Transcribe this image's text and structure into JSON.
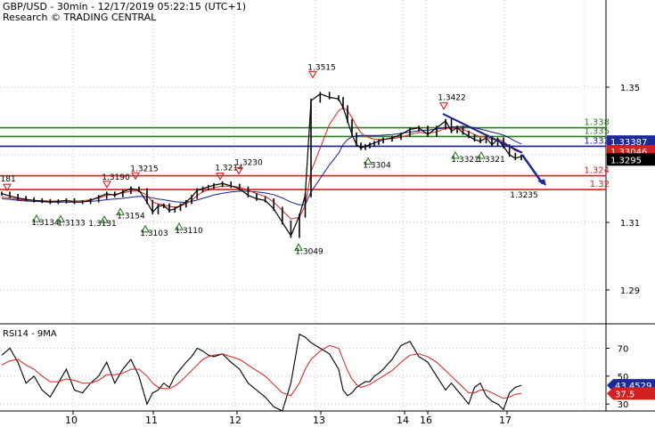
{
  "header": {
    "line1": "GBP/USD - 30min - 12/17/2019 05:22:15 (UTC+1)",
    "line2": "Research © TRADING CENTRAL"
  },
  "chart_data": [
    {
      "type": "line",
      "name": "price",
      "ylim": [
        1.2805,
        1.3758
      ],
      "y_ticks": [
        "1.35",
        "1.33",
        "1.31",
        "1.29"
      ],
      "y_tick_values": [
        1.35,
        1.33,
        1.31,
        1.29
      ],
      "x_tick_labels": [
        "10",
        "11",
        "12",
        "13",
        "14",
        "16",
        "17"
      ],
      "price_path": [
        1.3185,
        1.3178,
        1.3172,
        1.3168,
        1.3165,
        1.3163,
        1.316,
        1.3162,
        1.3165,
        1.316,
        1.316,
        1.3165,
        1.3175,
        1.3185,
        1.318,
        1.319,
        1.32,
        1.3195,
        1.316,
        1.313,
        1.3148,
        1.315,
        1.3135,
        1.314,
        1.315,
        1.316,
        1.3175,
        1.3195,
        1.32,
        1.3205,
        1.321,
        1.3215,
        1.3208,
        1.32,
        1.318,
        1.317,
        1.3165,
        1.314,
        1.31,
        1.306,
        1.312,
        1.318,
        1.346,
        1.348,
        1.347,
        1.3465,
        1.344,
        1.34,
        1.336,
        1.333,
        1.332,
        1.3325,
        1.333,
        1.3335,
        1.334,
        1.3345,
        1.335,
        1.336,
        1.3375,
        1.338,
        1.336,
        1.338,
        1.34,
        1.337,
        1.338,
        1.3365,
        1.3355,
        1.3345,
        1.334,
        1.335,
        1.333,
        1.3345,
        1.3325,
        1.33,
        1.329,
        1.3295
      ],
      "ma_fast": [
        1.3175,
        1.3172,
        1.3168,
        1.3166,
        1.3165,
        1.3164,
        1.3163,
        1.3163,
        1.3164,
        1.3163,
        1.3164,
        1.3167,
        1.3172,
        1.318,
        1.3183,
        1.3187,
        1.3192,
        1.3193,
        1.318,
        1.316,
        1.3155,
        1.3152,
        1.3147,
        1.3145,
        1.3148,
        1.3155,
        1.3165,
        1.318,
        1.319,
        1.3197,
        1.3203,
        1.3207,
        1.3207,
        1.3204,
        1.3195,
        1.3185,
        1.3177,
        1.316,
        1.3135,
        1.311,
        1.3115,
        1.315,
        1.325,
        1.332,
        1.339,
        1.343,
        1.344,
        1.343,
        1.341,
        1.3385,
        1.3365,
        1.3355,
        1.335,
        1.3346,
        1.3345,
        1.3346,
        1.3348,
        1.3352,
        1.336,
        1.3366,
        1.3364,
        1.3368,
        1.3378,
        1.3378,
        1.3379,
        1.3375,
        1.3368,
        1.336,
        1.3353,
        1.3352,
        1.3345,
        1.3346,
        1.334,
        1.3325,
        1.3312,
        1.3306
      ],
      "ma_slow": [
        1.317,
        1.3168,
        1.3165,
        1.3163,
        1.3162,
        1.3161,
        1.316,
        1.316,
        1.316,
        1.316,
        1.3161,
        1.3162,
        1.3164,
        1.3167,
        1.3169,
        1.3171,
        1.3174,
        1.3177,
        1.3176,
        1.3172,
        1.3169,
        1.3167,
        1.3164,
        1.3161,
        1.316,
        1.316,
        1.3162,
        1.3166,
        1.3171,
        1.3176,
        1.3181,
        1.3186,
        1.319,
        1.3192,
        1.3192,
        1.319,
        1.3187,
        1.3182,
        1.3172,
        1.316,
        1.3152,
        1.3152,
        1.319,
        1.323,
        1.327,
        1.3305,
        1.333,
        1.3345,
        1.3353,
        1.3356,
        1.3357,
        1.3357,
        1.3357,
        1.3357,
        1.3357,
        1.3358,
        1.336,
        1.3363,
        1.3367,
        1.3371,
        1.3373,
        1.3376,
        1.338,
        1.3382,
        1.3384,
        1.3384,
        1.3383,
        1.338,
        1.3376,
        1.3372,
        1.3367,
        1.3363,
        1.3358,
        1.335,
        1.334,
        1.3332
      ],
      "horizontal_levels": [
        {
          "label": "1.338",
          "value": 1.338,
          "color": "#2a7d1f",
          "role": "resistance"
        },
        {
          "label": "1.335",
          "value": 1.3354,
          "color": "#2a7d1f",
          "role": "resistance"
        },
        {
          "label": "1.332",
          "value": 1.3325,
          "color": "#1a1f8a",
          "role": "pivot"
        },
        {
          "label": "1.324",
          "value": 1.3238,
          "color": "#d42020",
          "role": "support"
        },
        {
          "label": "1.32",
          "value": 1.3197,
          "color": "#d42020",
          "role": "support"
        }
      ],
      "price_tags": [
        {
          "label": "1.33387",
          "value": 1.3339,
          "bg": "#1a2a9a",
          "fg": "#ffffff"
        },
        {
          "label": "1.33046",
          "value": 1.331,
          "bg": "#d42020",
          "fg": "#ffffff"
        },
        {
          "label": "1.3295",
          "value": 1.3286,
          "bg": "#000000",
          "fg": "#ffffff"
        }
      ],
      "annotations": [
        {
          "label": "1.3181",
          "value": 1.3181,
          "type": "high"
        },
        {
          "label": "1.3134",
          "value": 1.3134,
          "type": "low"
        },
        {
          "label": "1.3133",
          "value": 1.3133,
          "type": "low"
        },
        {
          "label": "1.3131",
          "value": 1.3131,
          "type": "low"
        },
        {
          "label": "1.3190",
          "value": 1.319,
          "type": "high"
        },
        {
          "label": "1.3154",
          "value": 1.3154,
          "type": "low"
        },
        {
          "label": "1.3215",
          "value": 1.3215,
          "type": "high"
        },
        {
          "label": "1.3103",
          "value": 1.3103,
          "type": "low"
        },
        {
          "label": "1.3110",
          "value": 1.311,
          "type": "low"
        },
        {
          "label": "1.3214",
          "value": 1.3214,
          "type": "high"
        },
        {
          "label": "1.3230",
          "value": 1.323,
          "type": "high"
        },
        {
          "label": "1.3049",
          "value": 1.3049,
          "type": "low"
        },
        {
          "label": "1.3515",
          "value": 1.3515,
          "type": "high"
        },
        {
          "label": "1.3304",
          "value": 1.3304,
          "type": "low"
        },
        {
          "label": "1.3422",
          "value": 1.3422,
          "type": "high"
        },
        {
          "label": "1.3321",
          "value": 1.3321,
          "type": "low"
        },
        {
          "label": "1.3321",
          "value": 1.3321,
          "type": "low"
        },
        {
          "label": "1.3235",
          "value": 1.3235,
          "type": "target"
        }
      ],
      "colors": {
        "price": "#000000",
        "ma_fast": "#d42020",
        "ma_slow": "#1a1f8a",
        "trendline": "#1a1f8a",
        "arrow": "#1a2a9a",
        "grid": "#b8b8b8"
      }
    },
    {
      "type": "line",
      "name": "RSI",
      "title": "RSI14 - 9MA",
      "ylim": [
        25,
        85
      ],
      "y_ticks": [
        "70",
        "50",
        "30"
      ],
      "y_tick_values": [
        70,
        50,
        30
      ],
      "rsi_values": [
        65,
        70,
        60,
        45,
        50,
        40,
        35,
        45,
        55,
        40,
        38,
        45,
        50,
        60,
        45,
        55,
        62,
        50,
        30,
        38,
        40,
        45,
        42,
        50,
        55,
        60,
        64,
        70,
        68,
        65,
        64,
        66,
        60,
        55,
        45,
        40,
        35,
        28,
        25,
        45,
        80,
        78,
        74,
        70,
        66,
        55,
        40,
        36,
        38,
        42,
        44,
        46,
        46,
        50,
        52,
        55,
        62,
        72,
        75,
        64,
        60,
        50,
        40,
        45,
        40,
        35,
        30,
        42,
        45,
        36,
        32,
        30,
        26,
        38,
        42,
        43.45
      ],
      "rsi_ma": [
        58,
        61,
        62,
        58,
        55,
        50,
        46,
        46,
        48,
        47,
        45,
        45,
        47,
        51,
        51,
        52,
        55,
        55,
        50,
        45,
        42,
        41,
        41,
        43,
        46,
        50,
        54,
        58,
        62,
        64,
        65,
        66,
        64,
        62,
        58,
        54,
        50,
        44,
        38,
        36,
        45,
        55,
        62,
        68,
        72,
        70,
        62,
        54,
        48,
        44,
        42,
        43,
        44,
        46,
        48,
        50,
        54,
        60,
        65,
        66,
        64,
        60,
        54,
        50,
        46,
        42,
        38,
        38,
        40,
        40,
        38,
        36,
        34,
        35,
        37,
        37.5
      ],
      "value_tags": [
        {
          "label": "43.4529",
          "value": 43.45,
          "bg": "#1a2a9a",
          "fg": "#ffffff"
        },
        {
          "label": "37.5",
          "value": 37.5,
          "bg": "#d42020",
          "fg": "#ffffff"
        }
      ],
      "colors": {
        "rsi": "#000000",
        "ma": "#d42020"
      }
    }
  ]
}
